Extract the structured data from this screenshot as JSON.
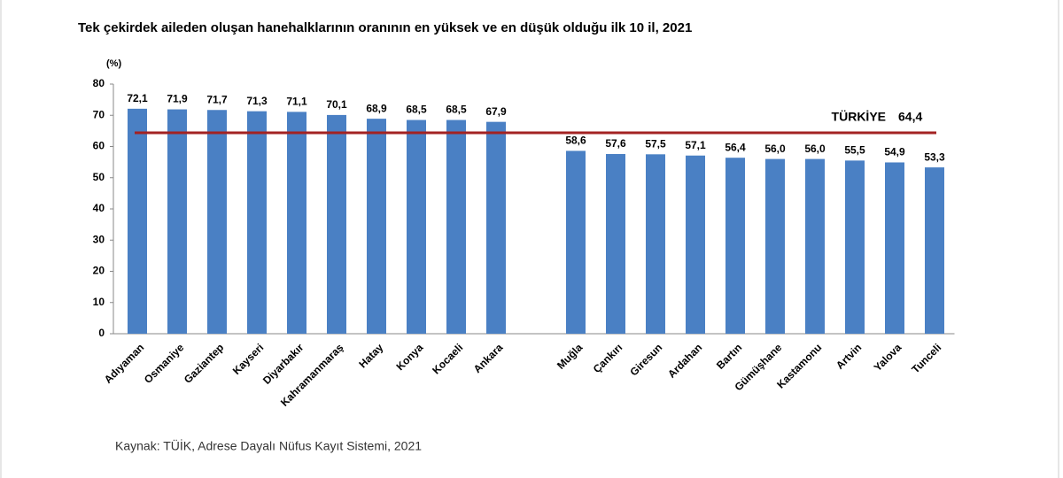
{
  "chart_data": {
    "type": "bar",
    "title": "Tek çekirdek aileden oluşan hanehalklarının oranının en yüksek ve en düşük olduğu ilk 10 il, 2021",
    "y_unit_label": "(%)",
    "categories": [
      "Adıyaman",
      "Osmaniye",
      "Gaziantep",
      "Kayseri",
      "Diyarbakır",
      "Kahramanmaraş",
      "Hatay",
      "Konya",
      "Kocaeli",
      "Ankara",
      null,
      "Muğla",
      "Çankırı",
      "Giresun",
      "Ardahan",
      "Bartın",
      "Gümüşhane",
      "Kastamonu",
      "Artvin",
      "Yalova",
      "Tunceli"
    ],
    "values": [
      72.1,
      71.9,
      71.7,
      71.3,
      71.1,
      70.1,
      68.9,
      68.5,
      68.5,
      67.9,
      null,
      58.6,
      57.6,
      57.5,
      57.1,
      56.4,
      56.0,
      56.0,
      55.5,
      54.9,
      53.3
    ],
    "value_labels": [
      "72,1",
      "71,9",
      "71,7",
      "71,3",
      "71,1",
      "70,1",
      "68,9",
      "68,5",
      "68,5",
      "67,9",
      null,
      "58,6",
      "57,6",
      "57,5",
      "57,1",
      "56,4",
      "56,0",
      "56,0",
      "55,5",
      "54,9",
      "53,3"
    ],
    "color": "#4a80c4",
    "reference_line": {
      "label": "TÜRKİYE",
      "value": 64.4,
      "value_label": "64,4",
      "color": "#a32222"
    },
    "ylim": [
      0,
      80
    ],
    "yticks": [
      0,
      10,
      20,
      30,
      40,
      50,
      60,
      70,
      80
    ],
    "grid": false,
    "source": "Kaynak: TÜİK, Adrese Dayalı Nüfus Kayıt Sistemi, 2021"
  }
}
